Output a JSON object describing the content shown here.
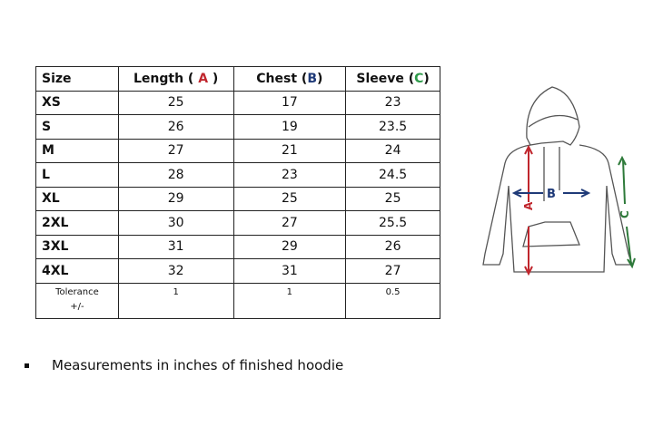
{
  "table": {
    "headers": {
      "size": "Size",
      "length": "Length (",
      "length_letter": "A",
      "chest": "Chest (",
      "chest_letter": "B",
      "sleeve": "Sleeve (",
      "sleeve_letter": "C",
      "close": ")"
    },
    "rows": [
      {
        "size": "XS",
        "length": "25",
        "chest": "17",
        "sleeve": "23"
      },
      {
        "size": "S",
        "length": "26",
        "chest": "19",
        "sleeve": "23.5"
      },
      {
        "size": "M",
        "length": "27",
        "chest": "21",
        "sleeve": "24"
      },
      {
        "size": "L",
        "length": "28",
        "chest": "23",
        "sleeve": "24.5"
      },
      {
        "size": "XL",
        "length": "29",
        "chest": "25",
        "sleeve": "25"
      },
      {
        "size": "2XL",
        "length": "30",
        "chest": "27",
        "sleeve": "25.5"
      },
      {
        "size": "3XL",
        "length": "31",
        "chest": "29",
        "sleeve": "26"
      },
      {
        "size": "4XL",
        "length": "32",
        "chest": "31",
        "sleeve": "27"
      }
    ],
    "tolerance": {
      "label": "Tolerance",
      "label2": "+/-",
      "length": "1",
      "chest": "1",
      "sleeve": "0.5"
    }
  },
  "diagram": {
    "label_a": "A",
    "label_b": "B",
    "label_c": "C",
    "colors": {
      "a": "#c0262d",
      "b": "#1f3a78",
      "c": "#2e7a3a"
    }
  },
  "note": "Measurements in inches of finished hoodie"
}
